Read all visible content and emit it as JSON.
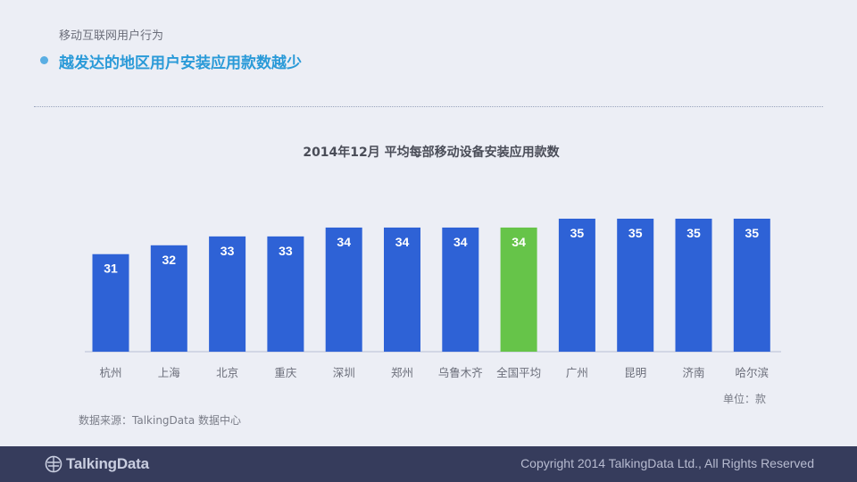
{
  "header": {
    "subtitle": "移动互联网用户行为",
    "headline": "越发达的地区用户安装应用款数越少"
  },
  "chart_data": {
    "type": "bar",
    "title": "2014年12月 平均每部移动设备安装应用款数",
    "categories": [
      "杭州",
      "上海",
      "北京",
      "重庆",
      "深圳",
      "郑州",
      "乌鲁木齐",
      "全国平均",
      "广州",
      "昆明",
      "济南",
      "哈尔滨"
    ],
    "values": [
      31,
      32,
      33,
      33,
      34,
      34,
      34,
      34,
      35,
      35,
      35,
      35
    ],
    "highlight_category": "全国平均",
    "xlabel": "",
    "ylabel": "",
    "ylim": [
      20,
      35
    ],
    "grid": false,
    "legend": "none",
    "colors": {
      "bar": "#2e62d6",
      "highlight": "#66c449",
      "label": "#ffffff",
      "axis": "#c9cde0",
      "tick": "#6b6e7a"
    }
  },
  "unit_label": "单位：款",
  "source": "数据来源：TalkingData 数据中心",
  "footer": {
    "logo_text": "TalkingData",
    "copyright": "Copyright 2014 TalkingData Ltd., All Rights Reserved"
  }
}
